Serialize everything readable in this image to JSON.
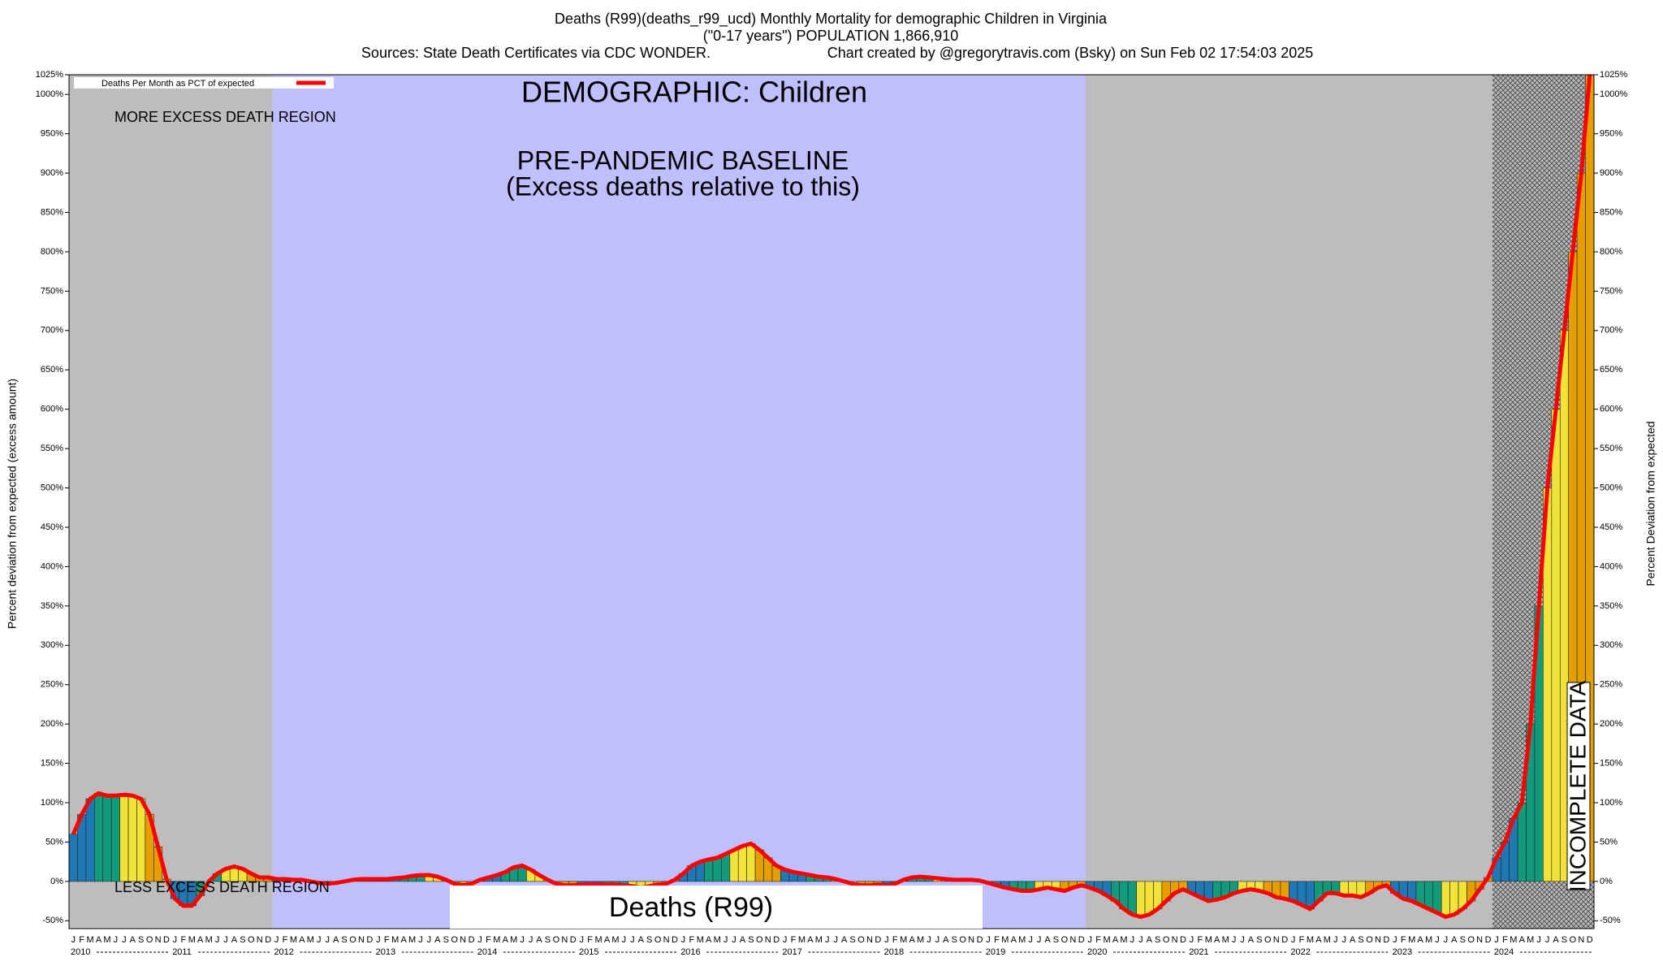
{
  "chart_data": {
    "type": "bar-line",
    "title": "Deaths (R99)(deaths_r99_ucd) Monthly Mortality for demographic Children in Virginia",
    "subtitle": "(\"0-17 years\") POPULATION 1,866,910",
    "sources": "Sources: State Death Certificates via CDC WONDER.",
    "credit": "Chart created by @gregorytravis.com (Bsky) on Sun Feb 02 17:54:03 2025",
    "y_label": "Percent deviation from expected (excess amount)",
    "y2_label": "Percent Deviation from expected",
    "annotations": {
      "demographic": "DEMOGRAPHIC: Children",
      "more": "MORE EXCESS DEATH REGION",
      "less": "LESS EXCESS DEATH REGION",
      "baseline": "PRE-PANDEMIC BASELINE",
      "baseline_note": "(Excess deaths relative to this)",
      "cause": "Deaths (R99)",
      "incomplete": "INCOMPLETE DATA"
    },
    "years": [
      "2010",
      "2011",
      "2012",
      "2013",
      "2014",
      "2015",
      "2016",
      "2017",
      "2018",
      "2019",
      "2020",
      "2021",
      "2022",
      "2023",
      "2024"
    ],
    "categories": [
      "J",
      "F",
      "M",
      "A",
      "M",
      "J",
      "J",
      "A",
      "S",
      "O",
      "N",
      "D",
      "J",
      "F",
      "M",
      "A",
      "M",
      "J",
      "J",
      "A",
      "S",
      "O",
      "N",
      "D",
      "J",
      "F",
      "M",
      "A",
      "M",
      "J",
      "J",
      "A",
      "S",
      "O",
      "N",
      "D",
      "J",
      "F",
      "M",
      "A",
      "M",
      "J",
      "J",
      "A",
      "S",
      "O",
      "N",
      "D",
      "J",
      "F",
      "M",
      "A",
      "M",
      "J",
      "J",
      "A",
      "S",
      "O",
      "N",
      "D",
      "J",
      "F",
      "M",
      "A",
      "M",
      "J",
      "J",
      "A",
      "S",
      "O",
      "N",
      "D",
      "J",
      "F",
      "M",
      "A",
      "M",
      "J",
      "J",
      "A",
      "S",
      "O",
      "N",
      "D",
      "J",
      "F",
      "M",
      "A",
      "M",
      "J",
      "J",
      "A",
      "S",
      "O",
      "N",
      "D",
      "J",
      "F",
      "M",
      "A",
      "M",
      "J",
      "J",
      "A",
      "S",
      "O",
      "N",
      "D",
      "J",
      "F",
      "M",
      "A",
      "M",
      "J",
      "J",
      "A",
      "S",
      "O",
      "N",
      "D",
      "J",
      "F",
      "M",
      "A",
      "M",
      "J",
      "J",
      "A",
      "S",
      "O",
      "N",
      "D",
      "J",
      "F",
      "M",
      "A",
      "M",
      "J",
      "J",
      "A",
      "S",
      "O",
      "N",
      "D",
      "J",
      "F",
      "M",
      "A",
      "M",
      "J",
      "J",
      "A",
      "S",
      "O",
      "N",
      "D",
      "J",
      "F",
      "M",
      "A",
      "M",
      "J",
      "J",
      "A",
      "S",
      "O",
      "N",
      "D",
      "J",
      "F",
      "M",
      "A",
      "M",
      "J",
      "J",
      "A",
      "S",
      "O",
      "N",
      "D"
    ],
    "bar_colors": [
      "#1f78b4",
      "#1f78b4",
      "#1f78b4",
      "#129a7a",
      "#129a7a",
      "#129a7a",
      "#f2e33a",
      "#f2e33a",
      "#f2e33a",
      "#e69f00",
      "#e69f00",
      "#e69f00"
    ],
    "series": [
      {
        "name": "Deaths Per Month as PCT of expected",
        "color": "#ff0000",
        "values": [
          60,
          85,
          105,
          112,
          109,
          109,
          110,
          109,
          105,
          85,
          44,
          3,
          -22,
          -31,
          -31,
          -18,
          0,
          10,
          16,
          19,
          16,
          10,
          5,
          5,
          3,
          3,
          2,
          2,
          0,
          -2,
          -3,
          -2,
          0,
          2,
          3,
          3,
          3,
          3,
          4,
          5,
          7,
          8,
          8,
          6,
          2,
          -3,
          -5,
          -3,
          2,
          5,
          8,
          12,
          18,
          20,
          15,
          8,
          2,
          -3,
          -5,
          -5,
          -4,
          -4,
          -4,
          -4,
          -4,
          -5,
          -6,
          -8,
          -6,
          -4,
          -3,
          2,
          10,
          20,
          25,
          28,
          30,
          35,
          40,
          45,
          48,
          40,
          30,
          20,
          15,
          12,
          10,
          8,
          6,
          5,
          3,
          0,
          -3,
          -5,
          -5,
          -4,
          -5,
          -3,
          2,
          5,
          6,
          5,
          4,
          3,
          2,
          2,
          2,
          1,
          -2,
          -5,
          -8,
          -10,
          -12,
          -12,
          -10,
          -8,
          -10,
          -12,
          -8,
          -5,
          -8,
          -12,
          -18,
          -25,
          -35,
          -42,
          -45,
          -42,
          -35,
          -25,
          -15,
          -10,
          -15,
          -20,
          -25,
          -23,
          -20,
          -15,
          -12,
          -10,
          -12,
          -15,
          -20,
          -22,
          -25,
          -30,
          -35,
          -25,
          -15,
          -15,
          -18,
          -18,
          -20,
          -15,
          -8,
          -5,
          -15,
          -22,
          -25,
          -30,
          -35,
          -40,
          -45,
          -42,
          -35,
          -25,
          -10,
          5,
          30,
          50,
          80,
          100,
          200,
          350,
          500,
          600,
          700,
          800,
          900,
          1025
        ]
      }
    ],
    "ylim": [
      -60,
      1025
    ],
    "yticks": [
      {
        "value": -50,
        "label": "-50%"
      },
      {
        "value": 0,
        "label": "0%"
      },
      {
        "value": 50,
        "label": "50%"
      },
      {
        "value": 100,
        "label": "100%"
      },
      {
        "value": 150,
        "label": "150%"
      },
      {
        "value": 200,
        "label": "200%"
      },
      {
        "value": 250,
        "label": "250%"
      },
      {
        "value": 300,
        "label": "300%"
      },
      {
        "value": 350,
        "label": "350%"
      },
      {
        "value": 400,
        "label": "400%"
      },
      {
        "value": 450,
        "label": "450%"
      },
      {
        "value": 500,
        "label": "500%"
      },
      {
        "value": 550,
        "label": "550%"
      },
      {
        "value": 600,
        "label": "600%"
      },
      {
        "value": 650,
        "label": "650%"
      },
      {
        "value": 700,
        "label": "700%"
      },
      {
        "value": 750,
        "label": "750%"
      },
      {
        "value": 800,
        "label": "800%"
      },
      {
        "value": 850,
        "label": "850%"
      },
      {
        "value": 900,
        "label": "900%"
      },
      {
        "value": 950,
        "label": "950%"
      },
      {
        "value": 1000,
        "label": "1000%"
      },
      {
        "value": 1025,
        "label": "1025%"
      }
    ]
  }
}
